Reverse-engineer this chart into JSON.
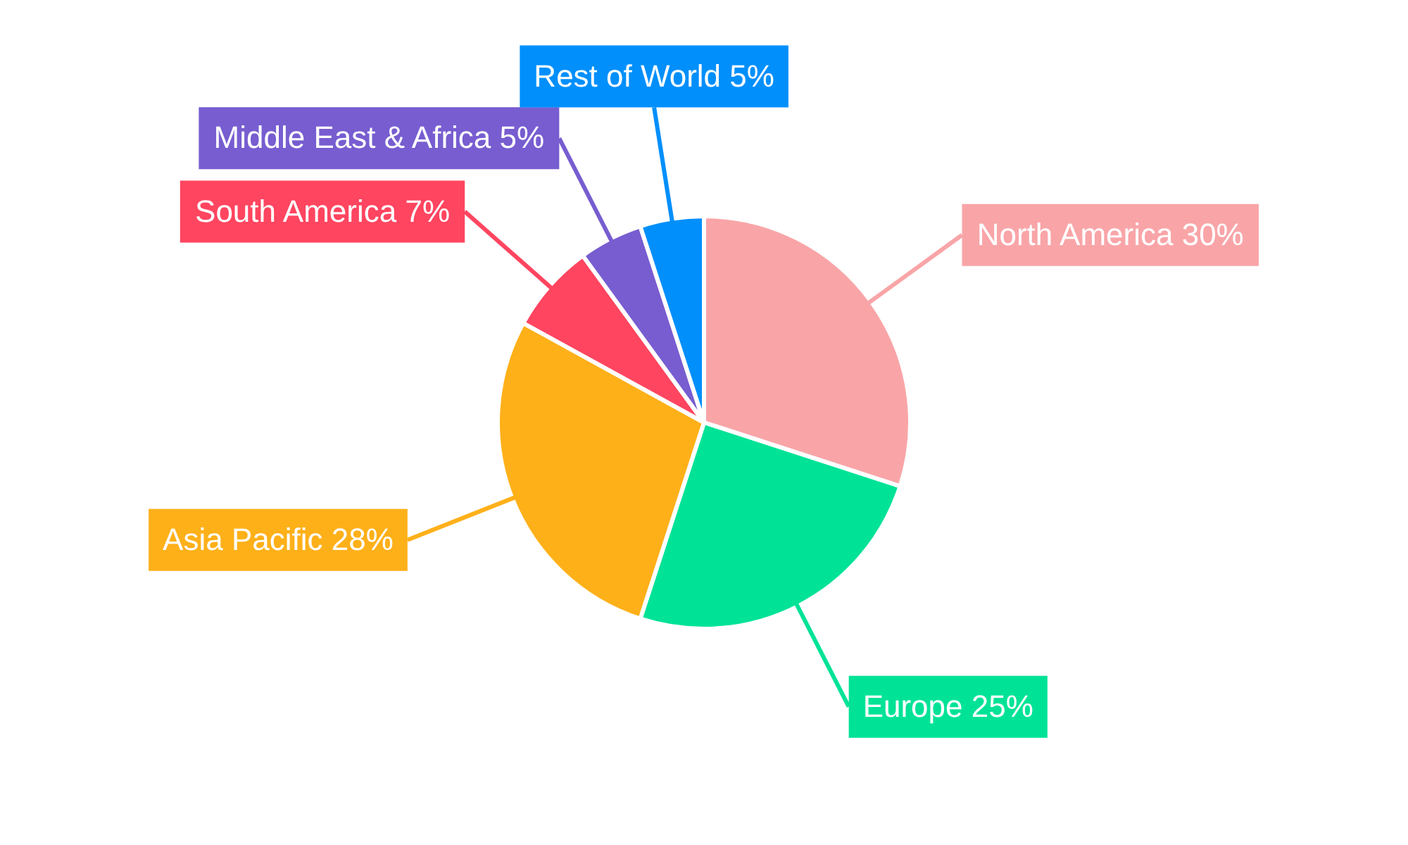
{
  "chart_data": {
    "type": "pie",
    "categories": [
      "North America",
      "Europe",
      "Asia Pacific",
      "South America",
      "Middle East & Africa",
      "Rest of World"
    ],
    "values": [
      30,
      25,
      28,
      7,
      5,
      5
    ],
    "colors": [
      "#f9a5a8",
      "#00e396",
      "#feb019",
      "#ff4560",
      "#775dd0",
      "#008ffb"
    ],
    "value_labels": [
      "30%",
      "25%",
      "28%",
      "7%",
      "5%",
      "5%"
    ]
  }
}
